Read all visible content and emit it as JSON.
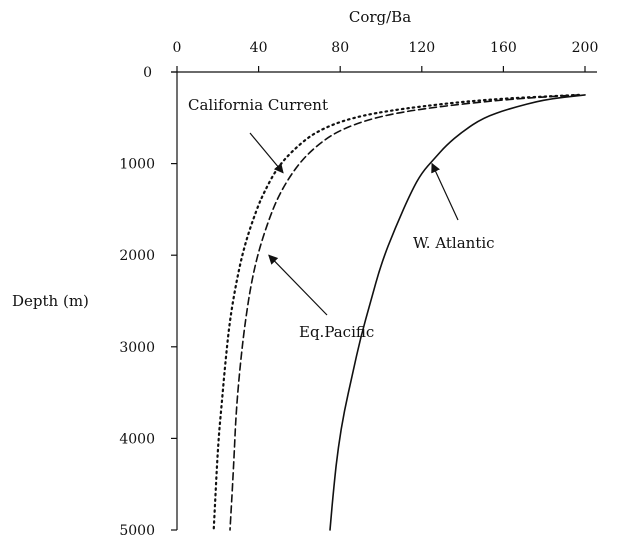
{
  "chart_data": {
    "type": "line",
    "xlabel": "Corg/Ba",
    "ylabel": "Depth (m)",
    "x_axis_position": "top",
    "y_axis_inverted": true,
    "xlim": [
      0,
      200
    ],
    "ylim": [
      0,
      5000
    ],
    "x_ticks": [
      0,
      40,
      80,
      120,
      160,
      200
    ],
    "y_ticks": [
      0,
      1000,
      2000,
      3000,
      4000,
      5000
    ],
    "x_tick_labels": [
      "0",
      "40",
      "80",
      "120",
      "160",
      "200"
    ],
    "y_tick_labels": [
      "0",
      "1000",
      "2000",
      "3000",
      "4000",
      "5000"
    ],
    "grid": false,
    "series": [
      {
        "name": "California Current",
        "line_style": "dotted",
        "x": [
          197,
          150,
          110,
          85,
          68,
          57,
          49,
          43,
          39,
          33,
          29,
          26,
          24,
          22,
          20,
          18
        ],
        "y": [
          250,
          300,
          400,
          500,
          650,
          850,
          1050,
          1300,
          1500,
          1900,
          2300,
          2700,
          3100,
          3600,
          4100,
          5000
        ]
      },
      {
        "name": "Eq.Pacific",
        "line_style": "dashed",
        "x": [
          197,
          160,
          120,
          96,
          78,
          66,
          58,
          51,
          46,
          40,
          36,
          33,
          31,
          29,
          28,
          26
        ],
        "y": [
          250,
          300,
          400,
          500,
          650,
          850,
          1050,
          1300,
          1550,
          1950,
          2350,
          2800,
          3200,
          3700,
          4200,
          5000
        ]
      },
      {
        "name": "W. Atlantic",
        "line_style": "solid",
        "x": [
          200,
          180,
          163,
          150,
          140,
          132,
          126,
          120,
          115,
          107,
          100,
          95,
          90,
          86,
          82,
          79,
          77,
          75
        ],
        "y": [
          250,
          300,
          400,
          500,
          650,
          800,
          950,
          1100,
          1300,
          1700,
          2100,
          2500,
          2900,
          3300,
          3700,
          4100,
          4500,
          5000
        ]
      }
    ],
    "annotations": [
      {
        "text": "California Current",
        "arrow_to_series": "California Current",
        "arrow_target": {
          "x": 52,
          "y": 1100
        }
      },
      {
        "text": "Eq.Pacific",
        "arrow_to_series": "Eq.Pacific",
        "arrow_target": {
          "x": 45,
          "y": 2000
        }
      },
      {
        "text": "W. Atlantic",
        "arrow_to_series": "W. Atlantic",
        "arrow_target": {
          "x": 125,
          "y": 1000
        }
      }
    ]
  }
}
